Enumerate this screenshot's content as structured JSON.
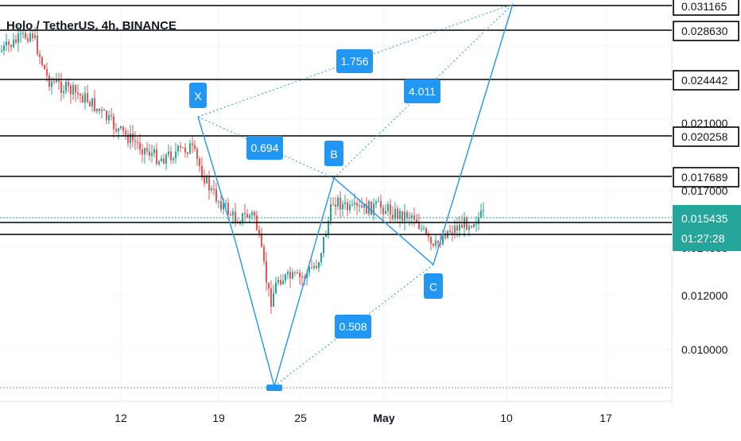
{
  "chart_data": {
    "type": "candlestick",
    "symbol_title": "Holo / TetherUS, 4h, BINANCE",
    "x_ticks": [
      "12",
      "19",
      "25",
      "May",
      "10",
      "17"
    ],
    "y_ticks": [
      "0.010000",
      "0.012000",
      "0.014000",
      "0.017000",
      "0.021000"
    ],
    "horizontal_levels": [
      "0.031165",
      "0.028630",
      "0.024442",
      "0.020258",
      "0.017689"
    ],
    "current_price": "0.015435",
    "countdown": "01:27:28",
    "pattern_points": [
      "X",
      "B",
      "C"
    ],
    "ratios": [
      "1.756",
      "4.011",
      "0.694",
      "0.508"
    ],
    "colors": {
      "up": "#26a69a",
      "down": "#ef5350",
      "pattern": "#2196f3",
      "current_price": "#26a69a"
    }
  }
}
